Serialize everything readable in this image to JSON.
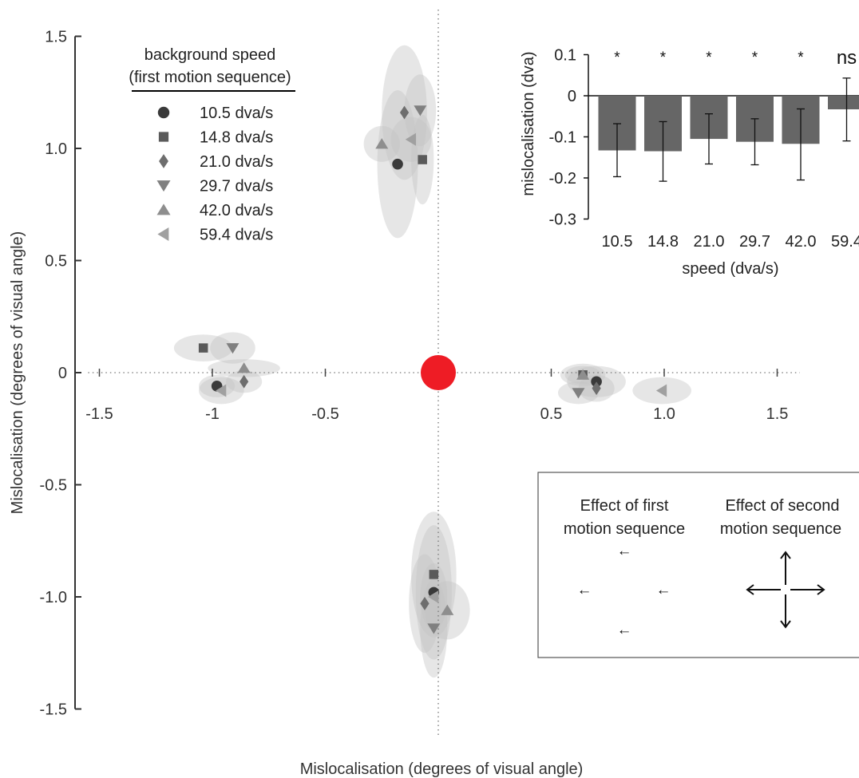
{
  "chart_data": [
    {
      "type": "scatter",
      "xlabel": "Mislocalisation (degrees of visual angle)",
      "ylabel": "Mislocalisation (degrees of visual angle)",
      "xlim": [
        -1.55,
        1.6
      ],
      "ylim": [
        -1.5,
        1.5
      ],
      "x_ticks": [
        {
          "value": -1.5,
          "label": "-1.5"
        },
        {
          "value": -1,
          "label": "-1"
        },
        {
          "value": -0.5,
          "label": "-0.5"
        },
        {
          "value": 0.5,
          "label": "0.5"
        },
        {
          "value": 1.0,
          "label": "1.0"
        },
        {
          "value": 1.5,
          "label": "1.5"
        }
      ],
      "y_ticks": [
        {
          "value": 1.5,
          "label": "1.5"
        },
        {
          "value": 1.0,
          "label": "1.0"
        },
        {
          "value": 0.5,
          "label": "0.5"
        },
        {
          "value": 0,
          "label": "0"
        },
        {
          "value": -0.5,
          "label": "-0.5"
        },
        {
          "value": -1.0,
          "label": "-1.0"
        },
        {
          "value": -1.5,
          "label": "-1.5"
        }
      ],
      "legend": {
        "title": [
          "background speed",
          "(first motion sequence)"
        ],
        "placement": "top-left"
      },
      "target": {
        "x": 0,
        "y": 0,
        "color": "#ee1c25"
      },
      "series": [
        {
          "name": "10.5 dva/s",
          "marker": "circle",
          "color": "#3a3a3a",
          "points": [
            {
              "x": -0.18,
              "y": 0.93,
              "ex": 0.09,
              "ey": 0.33
            },
            {
              "x": -0.98,
              "y": -0.06,
              "ex": 0.08,
              "ey": 0.05
            },
            {
              "x": 0.7,
              "y": -0.04,
              "ex": 0.13,
              "ey": 0.07
            },
            {
              "x": -0.02,
              "y": -0.98,
              "ex": 0.08,
              "ey": 0.3
            }
          ]
        },
        {
          "name": "14.8 dva/s",
          "marker": "square",
          "color": "#5a5a5a",
          "points": [
            {
              "x": -0.07,
              "y": 0.95,
              "ex": 0.05,
              "ey": 0.2
            },
            {
              "x": -1.04,
              "y": 0.11,
              "ex": 0.13,
              "ey": 0.06
            },
            {
              "x": 0.64,
              "y": -0.01,
              "ex": 0.1,
              "ey": 0.05
            },
            {
              "x": -0.02,
              "y": -0.9,
              "ex": 0.1,
              "ey": 0.28
            }
          ]
        },
        {
          "name": "21.0 dva/s",
          "marker": "diamond",
          "color": "#6e6e6e",
          "points": [
            {
              "x": -0.15,
              "y": 1.16,
              "ex": 0.1,
              "ey": 0.3
            },
            {
              "x": -0.86,
              "y": -0.04,
              "ex": 0.08,
              "ey": 0.05
            },
            {
              "x": 0.7,
              "y": -0.07,
              "ex": 0.08,
              "ey": 0.06
            },
            {
              "x": -0.06,
              "y": -1.03,
              "ex": 0.07,
              "ey": 0.22
            }
          ]
        },
        {
          "name": "29.7 dva/s",
          "marker": "triangle-down",
          "color": "#808080",
          "points": [
            {
              "x": -0.08,
              "y": 1.17,
              "ex": 0.07,
              "ey": 0.16
            },
            {
              "x": -0.91,
              "y": 0.11,
              "ex": 0.1,
              "ey": 0.07
            },
            {
              "x": 0.62,
              "y": -0.09,
              "ex": 0.09,
              "ey": 0.05
            },
            {
              "x": -0.02,
              "y": -1.14,
              "ex": 0.06,
              "ey": 0.22
            }
          ]
        },
        {
          "name": "42.0 dva/s",
          "marker": "triangle-up",
          "color": "#8e8e8e",
          "points": [
            {
              "x": -0.25,
              "y": 1.02,
              "ex": 0.08,
              "ey": 0.08
            },
            {
              "x": -0.86,
              "y": 0.02,
              "ex": 0.16,
              "ey": 0.04
            },
            {
              "x": 0.64,
              "y": -0.01,
              "ex": 0.08,
              "ey": 0.04
            },
            {
              "x": 0.04,
              "y": -1.06,
              "ex": 0.1,
              "ey": 0.13
            }
          ]
        },
        {
          "name": "59.4 dva/s",
          "marker": "triangle-left",
          "color": "#a0a0a0",
          "points": [
            {
              "x": -0.12,
              "y": 1.04,
              "ex": 0.09,
              "ey": 0.1
            },
            {
              "x": -0.96,
              "y": -0.08,
              "ex": 0.1,
              "ey": 0.06
            },
            {
              "x": 0.99,
              "y": -0.08,
              "ex": 0.13,
              "ey": 0.06
            },
            {
              "x": -0.02,
              "y": -1.0,
              "ex": 0.06,
              "ey": 0.15
            }
          ]
        }
      ]
    },
    {
      "type": "bar",
      "xlabel": "speed  (dva/s)",
      "ylabel": "mislocalisation (dva)",
      "ylim": [
        -0.3,
        0.1
      ],
      "y_ticks": [
        {
          "value": 0.1,
          "label": "0.1"
        },
        {
          "value": 0,
          "label": "0"
        },
        {
          "value": -0.1,
          "label": "-0.1"
        },
        {
          "value": -0.2,
          "label": "-0.2"
        },
        {
          "value": -0.3,
          "label": "-0.3"
        }
      ],
      "categories": [
        "10.5",
        "14.8",
        "21.0",
        "29.7",
        "42.0",
        "59.4"
      ],
      "values": [
        -0.133,
        -0.135,
        -0.105,
        -0.112,
        -0.117,
        -0.033
      ],
      "err_high": [
        -0.068,
        -0.063,
        -0.044,
        -0.056,
        -0.032,
        0.043
      ],
      "err_low": [
        -0.197,
        -0.208,
        -0.166,
        -0.168,
        -0.205,
        -0.11
      ],
      "significance": [
        "*",
        "*",
        "*",
        "*",
        "*",
        "ns"
      ],
      "color": "#666666"
    }
  ],
  "explanation_box": {
    "first_heading": [
      "Effect of first",
      "motion sequence"
    ],
    "second_heading": [
      "Effect of second",
      "motion sequence"
    ],
    "first_arrow_glyph": "←"
  }
}
